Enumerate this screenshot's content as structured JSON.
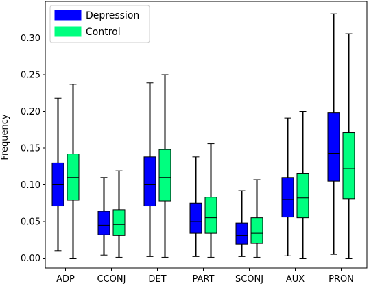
{
  "chart_data": {
    "type": "boxplot",
    "title": "",
    "xlabel": "",
    "ylabel": "Frequency",
    "ylim": [
      -0.012,
      0.345
    ],
    "yticks": [
      0.0,
      0.05,
      0.1,
      0.15,
      0.2,
      0.25,
      0.3
    ],
    "ytick_labels": [
      "0.00",
      "0.05",
      "0.10",
      "0.15",
      "0.20",
      "0.25",
      "0.30"
    ],
    "grid": false,
    "legend_position": "top-left",
    "categories": [
      "ADP",
      "CCONJ",
      "DET",
      "PART",
      "SCONJ",
      "AUX",
      "PRON"
    ],
    "series": [
      {
        "name": "Depression",
        "color": "#0000ff",
        "boxes": [
          {
            "whislo": 0.01,
            "q1": 0.071,
            "med": 0.1,
            "q3": 0.13,
            "whishi": 0.218
          },
          {
            "whislo": 0.004,
            "q1": 0.032,
            "med": 0.045,
            "q3": 0.064,
            "whishi": 0.11
          },
          {
            "whislo": 0.002,
            "q1": 0.071,
            "med": 0.1,
            "q3": 0.138,
            "whishi": 0.239
          },
          {
            "whislo": 0.002,
            "q1": 0.034,
            "med": 0.05,
            "q3": 0.075,
            "whishi": 0.138
          },
          {
            "whislo": 0.002,
            "q1": 0.019,
            "med": 0.031,
            "q3": 0.048,
            "whishi": 0.092
          },
          {
            "whislo": 0.003,
            "q1": 0.056,
            "med": 0.08,
            "q3": 0.11,
            "whishi": 0.191
          },
          {
            "whislo": 0.005,
            "q1": 0.105,
            "med": 0.143,
            "q3": 0.198,
            "whishi": 0.333
          }
        ]
      },
      {
        "name": "Control",
        "color": "#00ff7f",
        "boxes": [
          {
            "whislo": 0.0,
            "q1": 0.079,
            "med": 0.11,
            "q3": 0.142,
            "whishi": 0.237
          },
          {
            "whislo": 0.001,
            "q1": 0.031,
            "med": 0.046,
            "q3": 0.066,
            "whishi": 0.119
          },
          {
            "whislo": 0.001,
            "q1": 0.078,
            "med": 0.11,
            "q3": 0.148,
            "whishi": 0.25
          },
          {
            "whislo": 0.001,
            "q1": 0.034,
            "med": 0.055,
            "q3": 0.083,
            "whishi": 0.156
          },
          {
            "whislo": 0.001,
            "q1": 0.02,
            "med": 0.034,
            "q3": 0.055,
            "whishi": 0.107
          },
          {
            "whislo": 0.0,
            "q1": 0.055,
            "med": 0.082,
            "q3": 0.115,
            "whishi": 0.2
          },
          {
            "whislo": 0.0,
            "q1": 0.081,
            "med": 0.122,
            "q3": 0.171,
            "whishi": 0.306
          }
        ]
      }
    ]
  }
}
